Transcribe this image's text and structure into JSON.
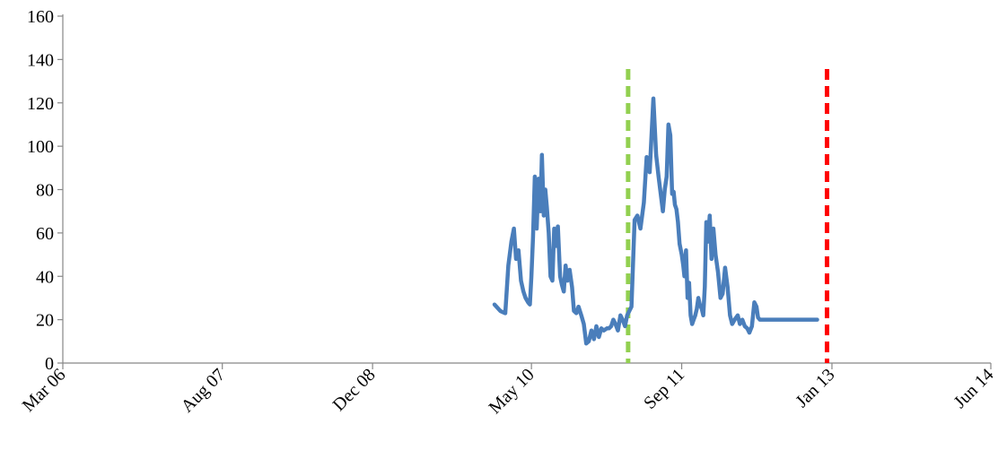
{
  "chart_data": {
    "type": "line",
    "title": "",
    "xlabel": "",
    "ylabel": "",
    "xlim": [
      "2006-03-01",
      "2014-06-01"
    ],
    "ylim": [
      0,
      160
    ],
    "yticks": [
      0,
      20,
      40,
      60,
      80,
      100,
      120,
      140,
      160
    ],
    "xticks": [
      {
        "date": "2006-03-01",
        "label": "Mar 06"
      },
      {
        "date": "2007-08-01",
        "label": "Aug 07"
      },
      {
        "date": "2008-12-01",
        "label": "Dec 08"
      },
      {
        "date": "2010-05-01",
        "label": "May 10"
      },
      {
        "date": "2011-09-01",
        "label": "Sep 11"
      },
      {
        "date": "2013-01-01",
        "label": "Jan 13"
      },
      {
        "date": "2014-06-01",
        "label": "Jun 14"
      }
    ],
    "grid": false,
    "legend": "none",
    "series": [
      {
        "color": "#4a7ebb",
        "x": [
          "2010-01-01",
          "2010-01-20",
          "2010-02-05",
          "2010-02-15",
          "2010-02-25",
          "2010-03-05",
          "2010-03-12",
          "2010-03-20",
          "2010-03-28",
          "2010-04-05",
          "2010-04-12",
          "2010-04-20",
          "2010-04-26",
          "2010-05-01",
          "2010-05-06",
          "2010-05-12",
          "2010-05-18",
          "2010-05-24",
          "2010-05-30",
          "2010-06-04",
          "2010-06-10",
          "2010-06-15",
          "2010-06-20",
          "2010-06-26",
          "2010-07-02",
          "2010-07-08",
          "2010-07-14",
          "2010-07-20",
          "2010-07-26",
          "2010-08-02",
          "2010-08-08",
          "2010-08-14",
          "2010-08-20",
          "2010-08-26",
          "2010-09-02",
          "2010-09-10",
          "2010-09-16",
          "2010-09-24",
          "2010-10-01",
          "2010-10-10",
          "2010-10-18",
          "2010-10-26",
          "2010-11-03",
          "2010-11-12",
          "2010-11-20",
          "2010-11-28",
          "2010-12-06",
          "2010-12-14",
          "2010-12-22",
          "2011-01-01",
          "2011-01-08",
          "2011-01-15",
          "2011-01-22",
          "2011-01-29",
          "2011-02-06",
          "2011-02-14",
          "2011-02-21",
          "2011-03-01",
          "2011-03-08",
          "2011-03-15",
          "2011-03-22",
          "2011-04-01",
          "2011-04-10",
          "2011-04-20",
          "2011-05-01",
          "2011-05-10",
          "2011-05-20",
          "2011-06-01",
          "2011-06-10",
          "2011-06-18",
          "2011-06-25",
          "2011-07-02",
          "2011-07-08",
          "2011-07-14",
          "2011-07-20",
          "2011-07-26",
          "2011-08-01",
          "2011-08-06",
          "2011-08-10",
          "2011-08-15",
          "2011-08-20",
          "2011-08-25",
          "2011-09-01",
          "2011-09-06",
          "2011-09-10",
          "2011-09-15",
          "2011-09-20",
          "2011-09-25",
          "2011-09-30",
          "2011-10-05",
          "2011-10-10",
          "2011-10-15",
          "2011-10-20",
          "2011-10-25",
          "2011-10-30",
          "2011-11-05",
          "2011-11-10",
          "2011-11-15",
          "2011-11-20",
          "2011-11-25",
          "2011-12-01",
          "2011-12-07",
          "2011-12-13",
          "2011-12-20",
          "2011-12-28",
          "2012-01-05",
          "2012-01-12",
          "2012-01-20",
          "2012-01-28",
          "2012-02-05",
          "2012-02-12",
          "2012-02-20",
          "2012-03-01",
          "2012-03-08",
          "2012-03-16",
          "2012-03-24",
          "2012-04-01",
          "2012-04-08",
          "2012-04-16",
          "2012-04-24",
          "2012-05-01",
          "2012-05-06",
          "2012-05-12",
          "2012-05-18",
          "2012-05-24",
          "2012-05-30",
          "2012-06-05",
          "2012-06-12",
          "2012-06-20",
          "2012-06-28",
          "2012-07-06",
          "2012-07-14",
          "2012-07-22",
          "2012-08-01",
          "2012-08-10",
          "2012-08-20",
          "2012-08-28",
          "2012-09-05",
          "2012-09-12",
          "2012-09-20",
          "2012-09-28",
          "2012-10-06",
          "2012-10-14",
          "2012-10-22",
          "2012-10-30",
          "2012-11-06",
          "2012-11-14"
        ],
        "y": [
          27,
          24,
          23,
          45,
          56,
          62,
          48,
          52,
          38,
          33,
          30,
          28,
          27,
          40,
          58,
          86,
          62,
          85,
          70,
          96,
          68,
          80,
          72,
          60,
          40,
          38,
          62,
          54,
          63,
          40,
          36,
          33,
          45,
          38,
          43,
          35,
          24,
          23,
          26,
          22,
          18,
          9,
          10,
          15,
          11,
          17,
          12,
          16,
          15,
          16,
          16,
          17,
          20,
          18,
          15,
          22,
          20,
          17,
          22,
          24,
          26,
          66,
          68,
          62,
          74,
          95,
          88,
          122,
          96,
          86,
          78,
          70,
          80,
          86,
          110,
          105,
          78,
          79,
          73,
          71,
          65,
          55,
          50,
          45,
          40,
          52,
          30,
          37,
          22,
          18,
          20,
          22,
          25,
          30,
          27,
          25,
          22,
          35,
          65,
          56,
          68,
          48,
          62,
          50,
          42,
          30,
          32,
          44,
          35,
          22,
          18,
          20,
          22,
          18,
          20,
          17,
          16,
          14,
          17,
          28,
          26,
          21,
          20,
          20,
          20,
          20,
          20,
          20,
          20,
          20,
          20,
          20,
          20,
          20,
          20,
          20,
          20,
          20,
          20,
          20,
          20,
          20,
          20,
          20,
          20,
          20,
          20
        ]
      }
    ],
    "vertical_lines": [
      {
        "date": "2011-03-11",
        "color": "#92d050",
        "style": "dashed"
      },
      {
        "date": "2012-12-16",
        "color": "#ff0000",
        "style": "dashed"
      }
    ]
  }
}
